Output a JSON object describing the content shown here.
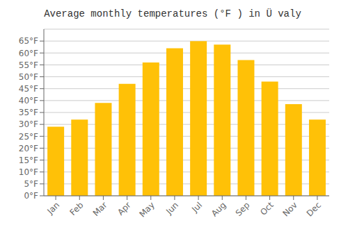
{
  "chart_data": {
    "type": "bar",
    "title": "Average monthly temperatures (°F ) in Ü valy",
    "categories": [
      "Jan",
      "Feb",
      "Mar",
      "Apr",
      "May",
      "Jun",
      "Jul",
      "Aug",
      "Sep",
      "Oct",
      "Nov",
      "Dec"
    ],
    "values": [
      29,
      32,
      39,
      47,
      56,
      62,
      65,
      63.5,
      57,
      48,
      38.5,
      32
    ],
    "color": "#FFC107",
    "ylim": [
      0,
      70
    ],
    "yticks": [
      {
        "value": 0,
        "label": "0°F"
      },
      {
        "value": 5,
        "label": "5°F"
      },
      {
        "value": 10,
        "label": "10°F"
      },
      {
        "value": 15,
        "label": "15°F"
      },
      {
        "value": 20,
        "label": "20°F"
      },
      {
        "value": 25,
        "label": "25°F"
      },
      {
        "value": 30,
        "label": "30°F"
      },
      {
        "value": 35,
        "label": "35°F"
      },
      {
        "value": 40,
        "label": "40°F"
      },
      {
        "value": 45,
        "label": "45°F"
      },
      {
        "value": 50,
        "label": "50°F"
      },
      {
        "value": 55,
        "label": "55°F"
      },
      {
        "value": 60,
        "label": "60°F"
      },
      {
        "value": 65,
        "label": "65°F"
      }
    ],
    "grid": true
  }
}
